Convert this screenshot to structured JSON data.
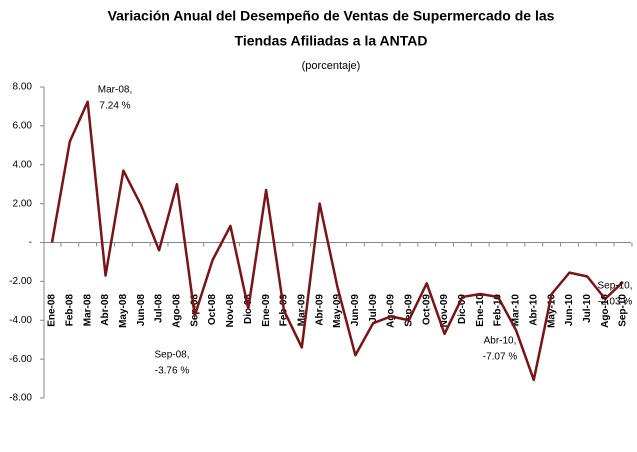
{
  "chart_data": {
    "type": "line",
    "title": [
      "Variación Anual del Desempeño de Ventas de Supermercado de las",
      "Tiendas Afiliadas a la ANTAD"
    ],
    "subtitle": "(porcentaje)",
    "categories": [
      "Ene-08",
      "Feb-08",
      "Mar-08",
      "Abr-08",
      "May-08",
      "Jun-08",
      "Jul-08",
      "Ago-08",
      "Sep-08",
      "Oct-08",
      "Nov-08",
      "Dic-08",
      "Ene-09",
      "Feb-09",
      "Mar-09",
      "Abr-09",
      "May-09",
      "Jun-09",
      "Jul-09",
      "Ago-09",
      "Sep-09",
      "Oct-09",
      "Nov-09",
      "Dic-09",
      "Ene-10",
      "Feb-10",
      "Mar-10",
      "Abr-10",
      "May-10",
      "Jun-10",
      "Jul-10",
      "Ago-10",
      "Sep-10"
    ],
    "series": [
      {
        "color": "#7b1417",
        "values": [
          0.0,
          5.2,
          7.24,
          -1.7,
          3.7,
          1.9,
          -0.4,
          3.0,
          -3.76,
          -0.9,
          0.85,
          -3.4,
          2.7,
          -3.5,
          -5.4,
          2.0,
          -2.3,
          -5.8,
          -4.15,
          -3.8,
          -4.0,
          -2.1,
          -4.7,
          -2.8,
          -2.65,
          -2.8,
          -4.5,
          -7.07,
          -2.65,
          -1.55,
          -1.75,
          -2.9,
          -2.03
        ]
      }
    ],
    "ylim": [
      -8,
      8
    ],
    "yticks": [
      {
        "value": -8,
        "label": "-8.00"
      },
      {
        "value": -6,
        "label": "-6.00"
      },
      {
        "value": -4,
        "label": "-4.00"
      },
      {
        "value": -2,
        "label": "-2.00"
      },
      {
        "value": 0,
        "label": "-"
      },
      {
        "value": 2,
        "label": "2.00"
      },
      {
        "value": 4,
        "label": "4.00"
      },
      {
        "value": 6,
        "label": "6.00"
      },
      {
        "value": 8,
        "label": "8.00"
      }
    ],
    "annotations": [
      {
        "lines": [
          "Mar-08,",
          "7.24 %"
        ]
      },
      {
        "lines": [
          "Sep-08,",
          "-3.76 %"
        ]
      },
      {
        "lines": [
          "Abr-10,",
          "-7.07 %"
        ]
      },
      {
        "lines": [
          "Sep-10,",
          "-2.03 %"
        ]
      }
    ]
  }
}
